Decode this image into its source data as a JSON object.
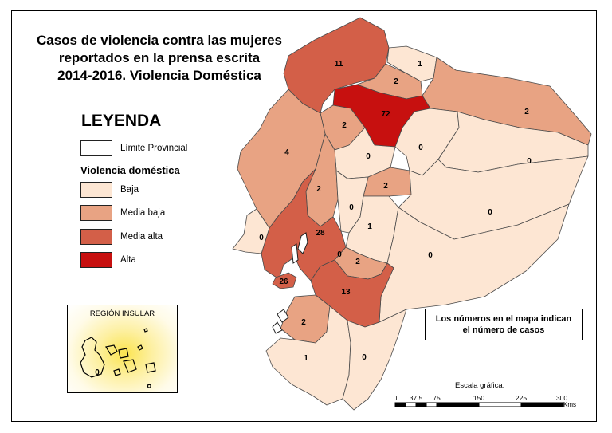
{
  "title": {
    "line1": "Casos de violencia contra las mujeres",
    "line2": "reportados en la prensa escrita",
    "line3": "2014-2016. Violencia Doméstica"
  },
  "legend": {
    "heading": "LEYENDA",
    "boundary_label": "Límite Provincial",
    "subheading": "Violencia doméstica",
    "classes": [
      {
        "label": "Baja",
        "color": "#fde6d3"
      },
      {
        "label": "Media baja",
        "color": "#e8a383"
      },
      {
        "label": "Media alta",
        "color": "#d35f48"
      },
      {
        "label": "Alta",
        "color": "#c7100f"
      }
    ]
  },
  "insular": {
    "label": "REGIÓN INSULAR",
    "value": "0"
  },
  "note": {
    "line1": "Los números en el mapa indican",
    "line2": "el número de casos"
  },
  "scale": {
    "title": "Escala gráfica:",
    "ticks": [
      "0",
      "37,5",
      "75",
      "150",
      "225",
      "300"
    ],
    "unit": "Kms"
  },
  "provinces": [
    {
      "value": "11",
      "class": "Media alta"
    },
    {
      "value": "1",
      "class": "Baja"
    },
    {
      "value": "2",
      "class": "Media baja"
    },
    {
      "value": "72",
      "class": "Alta"
    },
    {
      "value": "2",
      "class": "Media baja"
    },
    {
      "value": "2",
      "class": "Media baja"
    },
    {
      "value": "4",
      "class": "Media baja"
    },
    {
      "value": "0",
      "class": "Baja"
    },
    {
      "value": "0",
      "class": "Baja"
    },
    {
      "value": "0",
      "class": "Baja"
    },
    {
      "value": "2",
      "class": "Media baja"
    },
    {
      "value": "2",
      "class": "Media baja"
    },
    {
      "value": "0",
      "class": "Baja"
    },
    {
      "value": "0",
      "class": "Baja"
    },
    {
      "value": "0",
      "class": "Baja"
    },
    {
      "value": "1",
      "class": "Baja"
    },
    {
      "value": "28",
      "class": "Media alta"
    },
    {
      "value": "0",
      "class": "Baja"
    },
    {
      "value": "0",
      "class": "Baja"
    },
    {
      "value": "2",
      "class": "Media baja"
    },
    {
      "value": "26",
      "class": "Media alta"
    },
    {
      "value": "13",
      "class": "Media alta"
    },
    {
      "value": "2",
      "class": "Media baja"
    },
    {
      "value": "1",
      "class": "Baja"
    },
    {
      "value": "0",
      "class": "Baja"
    }
  ]
}
